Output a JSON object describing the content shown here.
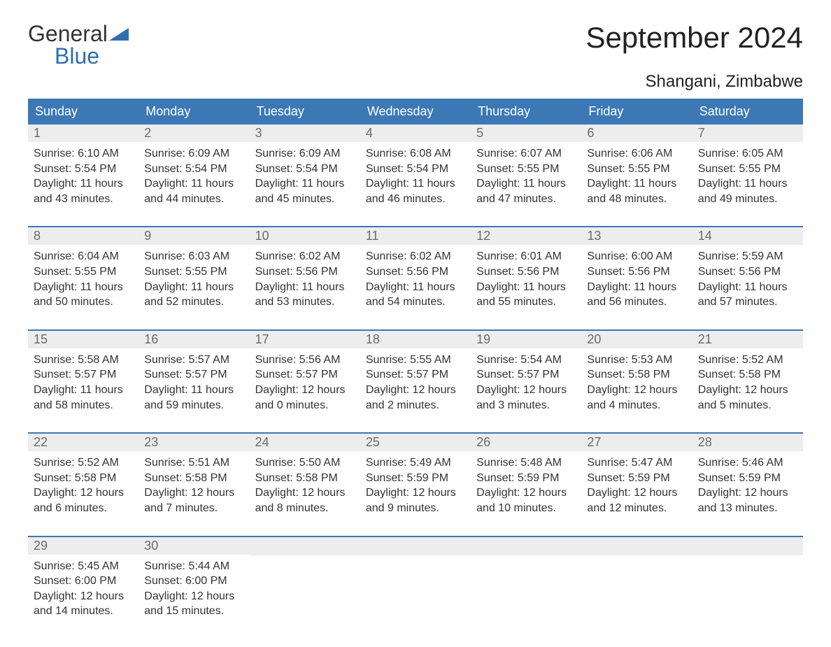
{
  "brand": {
    "part1": "General",
    "part2": "Blue"
  },
  "title": "September 2024",
  "location": "Shangani, Zimbabwe",
  "colors": {
    "header_bg": "#3b78b5",
    "header_text": "#ffffff",
    "daynum_bg": "#ededed",
    "daynum_text": "#6b6b6b",
    "body_text": "#333333",
    "rule": "#3b78b5",
    "page_bg": "#ffffff"
  },
  "fonts": {
    "title_size_pt": 32,
    "location_size_pt": 18,
    "header_size_pt": 14,
    "cell_size_pt": 12
  },
  "day_names": [
    "Sunday",
    "Monday",
    "Tuesday",
    "Wednesday",
    "Thursday",
    "Friday",
    "Saturday"
  ],
  "weeks": [
    [
      {
        "n": "1",
        "sr": "6:10 AM",
        "ss": "5:54 PM",
        "dl": "11 hours and 43 minutes."
      },
      {
        "n": "2",
        "sr": "6:09 AM",
        "ss": "5:54 PM",
        "dl": "11 hours and 44 minutes."
      },
      {
        "n": "3",
        "sr": "6:09 AM",
        "ss": "5:54 PM",
        "dl": "11 hours and 45 minutes."
      },
      {
        "n": "4",
        "sr": "6:08 AM",
        "ss": "5:54 PM",
        "dl": "11 hours and 46 minutes."
      },
      {
        "n": "5",
        "sr": "6:07 AM",
        "ss": "5:55 PM",
        "dl": "11 hours and 47 minutes."
      },
      {
        "n": "6",
        "sr": "6:06 AM",
        "ss": "5:55 PM",
        "dl": "11 hours and 48 minutes."
      },
      {
        "n": "7",
        "sr": "6:05 AM",
        "ss": "5:55 PM",
        "dl": "11 hours and 49 minutes."
      }
    ],
    [
      {
        "n": "8",
        "sr": "6:04 AM",
        "ss": "5:55 PM",
        "dl": "11 hours and 50 minutes."
      },
      {
        "n": "9",
        "sr": "6:03 AM",
        "ss": "5:55 PM",
        "dl": "11 hours and 52 minutes."
      },
      {
        "n": "10",
        "sr": "6:02 AM",
        "ss": "5:56 PM",
        "dl": "11 hours and 53 minutes."
      },
      {
        "n": "11",
        "sr": "6:02 AM",
        "ss": "5:56 PM",
        "dl": "11 hours and 54 minutes."
      },
      {
        "n": "12",
        "sr": "6:01 AM",
        "ss": "5:56 PM",
        "dl": "11 hours and 55 minutes."
      },
      {
        "n": "13",
        "sr": "6:00 AM",
        "ss": "5:56 PM",
        "dl": "11 hours and 56 minutes."
      },
      {
        "n": "14",
        "sr": "5:59 AM",
        "ss": "5:56 PM",
        "dl": "11 hours and 57 minutes."
      }
    ],
    [
      {
        "n": "15",
        "sr": "5:58 AM",
        "ss": "5:57 PM",
        "dl": "11 hours and 58 minutes."
      },
      {
        "n": "16",
        "sr": "5:57 AM",
        "ss": "5:57 PM",
        "dl": "11 hours and 59 minutes."
      },
      {
        "n": "17",
        "sr": "5:56 AM",
        "ss": "5:57 PM",
        "dl": "12 hours and 0 minutes."
      },
      {
        "n": "18",
        "sr": "5:55 AM",
        "ss": "5:57 PM",
        "dl": "12 hours and 2 minutes."
      },
      {
        "n": "19",
        "sr": "5:54 AM",
        "ss": "5:57 PM",
        "dl": "12 hours and 3 minutes."
      },
      {
        "n": "20",
        "sr": "5:53 AM",
        "ss": "5:58 PM",
        "dl": "12 hours and 4 minutes."
      },
      {
        "n": "21",
        "sr": "5:52 AM",
        "ss": "5:58 PM",
        "dl": "12 hours and 5 minutes."
      }
    ],
    [
      {
        "n": "22",
        "sr": "5:52 AM",
        "ss": "5:58 PM",
        "dl": "12 hours and 6 minutes."
      },
      {
        "n": "23",
        "sr": "5:51 AM",
        "ss": "5:58 PM",
        "dl": "12 hours and 7 minutes."
      },
      {
        "n": "24",
        "sr": "5:50 AM",
        "ss": "5:58 PM",
        "dl": "12 hours and 8 minutes."
      },
      {
        "n": "25",
        "sr": "5:49 AM",
        "ss": "5:59 PM",
        "dl": "12 hours and 9 minutes."
      },
      {
        "n": "26",
        "sr": "5:48 AM",
        "ss": "5:59 PM",
        "dl": "12 hours and 10 minutes."
      },
      {
        "n": "27",
        "sr": "5:47 AM",
        "ss": "5:59 PM",
        "dl": "12 hours and 12 minutes."
      },
      {
        "n": "28",
        "sr": "5:46 AM",
        "ss": "5:59 PM",
        "dl": "12 hours and 13 minutes."
      }
    ],
    [
      {
        "n": "29",
        "sr": "5:45 AM",
        "ss": "6:00 PM",
        "dl": "12 hours and 14 minutes."
      },
      {
        "n": "30",
        "sr": "5:44 AM",
        "ss": "6:00 PM",
        "dl": "12 hours and 15 minutes."
      },
      null,
      null,
      null,
      null,
      null
    ]
  ],
  "labels": {
    "sunrise": "Sunrise:",
    "sunset": "Sunset:",
    "daylight": "Daylight:"
  }
}
